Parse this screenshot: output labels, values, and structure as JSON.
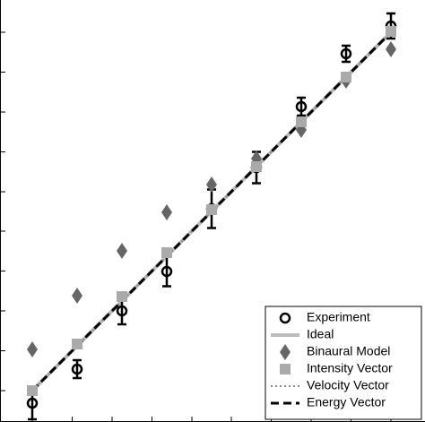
{
  "chart_data": {
    "type": "scatter",
    "x": [
      1,
      2,
      3,
      4,
      5,
      6,
      7,
      8,
      9
    ],
    "xlim": [
      0.28,
      9.76
    ],
    "ylim": [
      0.3,
      9.72
    ],
    "xticks": [
      1,
      1.89,
      2.78,
      3.67,
      4.56,
      5.44,
      6.33,
      7.22,
      8.11,
      9
    ],
    "yticks": [
      1,
      1.89,
      2.78,
      3.67,
      4.56,
      5.44,
      6.33,
      7.22,
      8.11,
      9
    ],
    "legend": "lower right",
    "series": [
      {
        "name": "Experiment",
        "color": "#000000",
        "marker": "circle",
        "values": [
          0.72,
          1.48,
          2.78,
          3.66,
          5.06,
          5.98,
          7.34,
          8.52,
          9.14
        ],
        "errors": [
          0.36,
          0.2,
          0.3,
          0.33,
          0.43,
          0.35,
          0.2,
          0.18,
          0.28
        ]
      },
      {
        "name": "Ideal",
        "color": "#bbbbbb",
        "line": "solid",
        "values": [
          1,
          2,
          3,
          4,
          5,
          6,
          7,
          8,
          9
        ]
      },
      {
        "name": "Binaural Model",
        "color": "#666666",
        "marker": "diamond",
        "values": [
          1.92,
          3.12,
          4.12,
          4.98,
          5.6,
          6.18,
          6.82,
          7.92,
          8.62
        ]
      },
      {
        "name": "Intensity Vector",
        "color": "#aaaaaa",
        "marker": "square",
        "values": [
          1,
          2.04,
          3.1,
          4.08,
          5.04,
          6,
          7,
          8,
          9.02
        ]
      },
      {
        "name": "Velocity Vector",
        "color": "#888888",
        "line": "dotted",
        "values": [
          1,
          2,
          3,
          4,
          5,
          6,
          7,
          8,
          9
        ]
      },
      {
        "name": "Energy Vector",
        "color": "#000000",
        "line": "dashed",
        "values": [
          1,
          2,
          3,
          4,
          5,
          6,
          7,
          8,
          9
        ]
      }
    ]
  }
}
